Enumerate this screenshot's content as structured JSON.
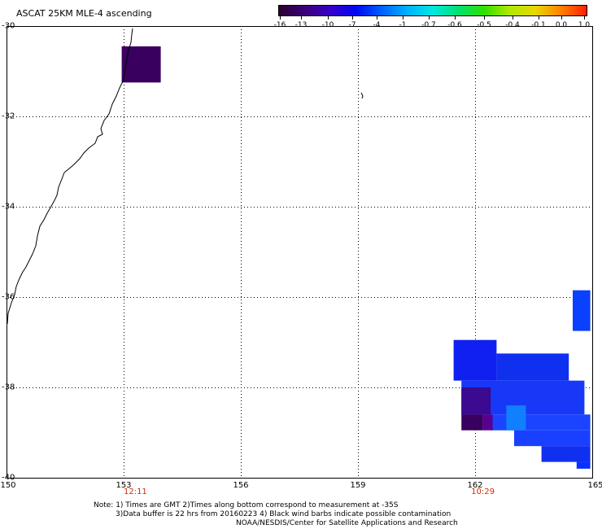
{
  "title": "ASCAT 25KM MLE-4 ascending",
  "colorbar": {
    "labels": [
      "-16",
      "-13",
      "-10",
      "-7",
      "-4",
      "-1",
      "-0.7",
      "-0.6",
      "-0.5",
      "-0.4",
      "-0.1",
      "0.0",
      "1.0"
    ],
    "colors": [
      "#2a0030",
      "#3a0078",
      "#3800c8",
      "#0008f0",
      "#0060ff",
      "#00b0ff",
      "#00e8e0",
      "#00e070",
      "#30e000",
      "#b0e800",
      "#e8d800",
      "#ff8000",
      "#ff2000"
    ]
  },
  "map": {
    "lon_ticks": [
      "150",
      "153",
      "156",
      "159",
      "162",
      "165"
    ],
    "lat_ticks": [
      "-30",
      "-32",
      "-34",
      "-36",
      "-38",
      "-40"
    ],
    "lon_values": [
      150,
      153,
      156,
      159,
      162,
      165
    ],
    "lat_values": [
      -30,
      -32,
      -34,
      -36,
      -38,
      -40
    ],
    "extent": {
      "lon_min": 150,
      "lon_max": 165,
      "lat_max": -30,
      "lat_min": -40
    },
    "pass_times": [
      {
        "label": "12:11",
        "lon": 153.3
      },
      {
        "label": "10:29",
        "lon": 162.2
      }
    ],
    "swath_cells": [
      {
        "lon0": 152.95,
        "lon1": 153.95,
        "lat0": -30.45,
        "lat1": -31.25,
        "color": "#3a0060"
      },
      {
        "lon0": 164.5,
        "lon1": 164.95,
        "lat0": -35.85,
        "lat1": -36.75,
        "color": "#0a40ff"
      },
      {
        "lon0": 161.45,
        "lon1": 162.55,
        "lat0": -36.95,
        "lat1": -37.85,
        "color": "#1020f0"
      },
      {
        "lon0": 162.55,
        "lon1": 164.4,
        "lat0": -37.25,
        "lat1": -37.85,
        "color": "#1030f0"
      },
      {
        "lon0": 161.65,
        "lon1": 164.8,
        "lat0": -37.85,
        "lat1": -38.6,
        "color": "#1838f8"
      },
      {
        "lon0": 161.65,
        "lon1": 162.4,
        "lat0": -38.0,
        "lat1": -38.6,
        "color": "#3a0a90"
      },
      {
        "lon0": 162.4,
        "lon1": 164.95,
        "lat0": -38.6,
        "lat1": -38.95,
        "color": "#1a44ff"
      },
      {
        "lon0": 161.65,
        "lon1": 162.2,
        "lat0": -38.6,
        "lat1": -38.95,
        "color": "#3a0060"
      },
      {
        "lon0": 162.2,
        "lon1": 162.45,
        "lat0": -38.6,
        "lat1": -38.95,
        "color": "#5a0090"
      },
      {
        "lon0": 162.8,
        "lon1": 163.3,
        "lat0": -38.4,
        "lat1": -38.95,
        "color": "#1080ff"
      },
      {
        "lon0": 163.0,
        "lon1": 164.95,
        "lat0": -38.95,
        "lat1": -39.3,
        "color": "#1a40ff"
      },
      {
        "lon0": 163.7,
        "lon1": 164.95,
        "lat0": -39.3,
        "lat1": -39.65,
        "color": "#1030f0"
      },
      {
        "lon0": 164.6,
        "lon1": 164.95,
        "lat0": -39.65,
        "lat1": -39.8,
        "color": "#0a30ff"
      }
    ]
  },
  "notes": {
    "line1": "Note: 1) Times are GMT 2)Times along bottom correspond to measurement at -35S",
    "line2": "3)Data buffer is 22 hrs from 20160223 4) Black wind barbs indicate possible contamination",
    "line3": "NOAA/NESDIS/Center for Satellite Applications and Research"
  }
}
